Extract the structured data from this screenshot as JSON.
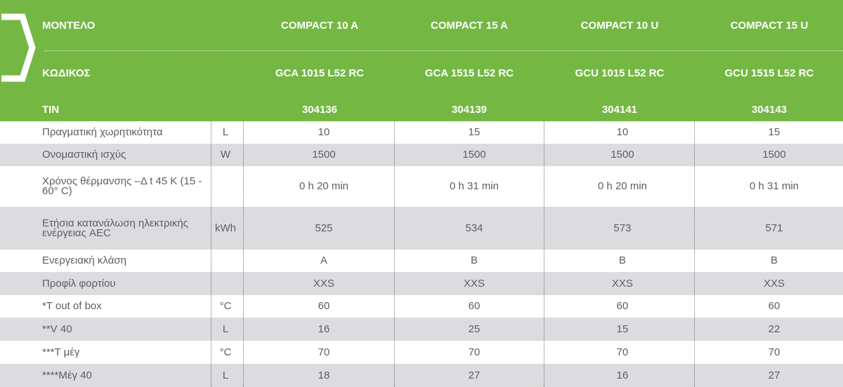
{
  "header": {
    "rows": [
      {
        "label": "ΜΟΝΤΕΛΟ",
        "values": [
          "COMPACT 10 A",
          "COMPACT 15 A",
          "COMPACT 10 U",
          "COMPACT 15 U"
        ]
      },
      {
        "label": "ΚΩΔΙΚΟΣ",
        "values": [
          "GCA 1015 L52 RC",
          "GCA 1515 L52 RC",
          "GCU 1015 L52 RC",
          "GCU 1515 L52 RC"
        ]
      },
      {
        "label": "TIN",
        "values": [
          "304136",
          "304139",
          "304141",
          "304143"
        ]
      }
    ]
  },
  "rows": [
    {
      "label": "Πραγματική χωρητικότητα",
      "unit": "L",
      "values": [
        "10",
        "15",
        "10",
        "15"
      ]
    },
    {
      "label": "Ονομαστική ισχύς",
      "unit": "W",
      "values": [
        "1500",
        "1500",
        "1500",
        "1500"
      ]
    },
    {
      "label": "Χρόνος θέρμανσης –Δ t 45 K (15 - 60° C)",
      "unit": "",
      "values": [
        "0 h 20 min",
        "0 h 31 min",
        "0 h 20 min",
        "0 h 31 min"
      ]
    },
    {
      "label": "Ετήσια κατανάλωση ηλεκτρικής ενέργειας AEC",
      "unit": "kWh",
      "values": [
        "525",
        "534",
        "573",
        "571"
      ]
    },
    {
      "label": "Ενεργειακή κλάση",
      "unit": "",
      "values": [
        "A",
        "B",
        "B",
        "B"
      ]
    },
    {
      "label": "Προφίλ φορτίου",
      "unit": "",
      "values": [
        "XXS",
        "XXS",
        "XXS",
        "XXS"
      ]
    },
    {
      "label": "*T out of box",
      "unit": "°C",
      "values": [
        "60",
        "60",
        "60",
        "60"
      ]
    },
    {
      "label": "**V 40",
      "unit": "L",
      "values": [
        "16",
        "25",
        "15",
        "22"
      ]
    },
    {
      "label": "***T μέγ",
      "unit": "°C",
      "values": [
        "70",
        "70",
        "70",
        "70"
      ]
    },
    {
      "label": "****Μέγ 40",
      "unit": "L",
      "values": [
        "18",
        "27",
        "16",
        "27"
      ]
    }
  ],
  "colors": {
    "header_green": "#74b843",
    "stripe_gray": "#dcdcde",
    "text_gray": "#5b5e63"
  },
  "icons": {
    "logo": "chevron-logo-icon"
  }
}
